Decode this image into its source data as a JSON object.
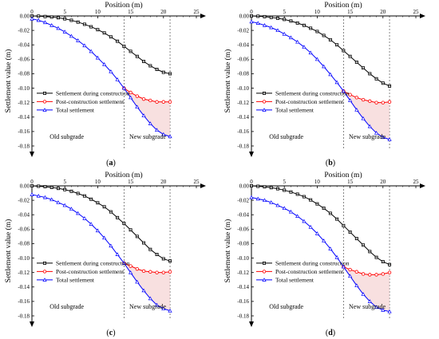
{
  "figure": {
    "panels": [
      "(a)",
      "(b)",
      "(c)",
      "(d)"
    ]
  },
  "colors": {
    "during": "#000000",
    "post": "#ff0000",
    "total": "#0000ff",
    "post_fill": "#f2c6c6",
    "divider": "#555555"
  },
  "chart_data": [
    {
      "type": "line",
      "panel_label": "(a)",
      "xlabel": "Position (m)",
      "ylabel": "Settlement value (m)",
      "xlim": [
        0,
        25
      ],
      "ylim": [
        -0.18,
        0.0
      ],
      "xticks": [
        "0",
        "5",
        "10",
        "15",
        "20",
        "25"
      ],
      "yticks": [
        "0.00",
        "-0.02",
        "-0.04",
        "-0.06",
        "-0.08",
        "-0.10",
        "-0.12",
        "-0.14",
        "-0.16",
        "-0.18"
      ],
      "divider_x": [
        14,
        21
      ],
      "region_labels": [
        "Old subgrade",
        "New subgrade"
      ],
      "legend_position": "left-middle",
      "series": [
        {
          "name": "Settlement during construction",
          "color": "#000000",
          "marker": "square",
          "x": [
            0,
            1,
            2,
            3,
            4,
            5,
            6,
            7,
            8,
            9,
            10,
            11,
            12,
            13,
            14,
            15,
            16,
            17,
            18,
            19,
            20,
            21
          ],
          "y": [
            0.0,
            -0.0003,
            -0.0008,
            -0.0015,
            -0.0025,
            -0.004,
            -0.006,
            -0.0085,
            -0.0115,
            -0.015,
            -0.019,
            -0.0235,
            -0.029,
            -0.035,
            -0.042,
            -0.049,
            -0.056,
            -0.063,
            -0.069,
            -0.074,
            -0.078,
            -0.08
          ]
        },
        {
          "name": "Post-construction settlement",
          "color": "#ff0000",
          "marker": "circle",
          "x": [
            14,
            15,
            16,
            17,
            18,
            19,
            20,
            21
          ],
          "y": [
            -0.1,
            -0.106,
            -0.111,
            -0.115,
            -0.117,
            -0.119,
            -0.119,
            -0.119
          ]
        },
        {
          "name": "Total settlement",
          "color": "#0000ff",
          "marker": "triangle",
          "x": [
            0,
            1,
            2,
            3,
            4,
            5,
            6,
            7,
            8,
            9,
            10,
            11,
            12,
            13,
            14,
            15,
            16,
            17,
            18,
            19,
            20,
            21
          ],
          "y": [
            -0.004,
            -0.006,
            -0.009,
            -0.013,
            -0.017,
            -0.022,
            -0.028,
            -0.034,
            -0.041,
            -0.049,
            -0.058,
            -0.067,
            -0.077,
            -0.088,
            -0.1,
            -0.113,
            -0.126,
            -0.138,
            -0.149,
            -0.158,
            -0.164,
            -0.167
          ]
        }
      ]
    },
    {
      "type": "line",
      "panel_label": "(b)",
      "xlabel": "Position (m)",
      "ylabel": "Settlement value (m)",
      "xlim": [
        0,
        25
      ],
      "ylim": [
        -0.18,
        0.0
      ],
      "xticks": [
        "0",
        "5",
        "10",
        "15",
        "20",
        "25"
      ],
      "yticks": [
        "0.00",
        "-0.02",
        "-0.04",
        "-0.06",
        "-0.08",
        "-0.10",
        "-0.12",
        "-0.14",
        "-0.16",
        "-0.18"
      ],
      "divider_x": [
        14,
        21
      ],
      "region_labels": [
        "Old subgrade",
        "New subgrade"
      ],
      "legend_position": "left-middle",
      "series": [
        {
          "name": "Settlement during construction",
          "color": "#000000",
          "marker": "square",
          "x": [
            0,
            1,
            2,
            3,
            4,
            5,
            6,
            7,
            8,
            9,
            10,
            11,
            12,
            13,
            14,
            15,
            16,
            17,
            18,
            19,
            20,
            21
          ],
          "y": [
            0.0,
            -0.0004,
            -0.001,
            -0.002,
            -0.0032,
            -0.0048,
            -0.007,
            -0.0098,
            -0.013,
            -0.017,
            -0.0215,
            -0.027,
            -0.033,
            -0.04,
            -0.048,
            -0.056,
            -0.064,
            -0.072,
            -0.08,
            -0.087,
            -0.093,
            -0.097
          ]
        },
        {
          "name": "Post-construction settlement",
          "color": "#ff0000",
          "marker": "circle",
          "x": [
            14,
            15,
            16,
            17,
            18,
            19,
            20,
            21
          ],
          "y": [
            -0.104,
            -0.109,
            -0.113,
            -0.116,
            -0.118,
            -0.12,
            -0.12,
            -0.119
          ]
        },
        {
          "name": "Total settlement",
          "color": "#0000ff",
          "marker": "triangle",
          "x": [
            0,
            1,
            2,
            3,
            4,
            5,
            6,
            7,
            8,
            9,
            10,
            11,
            12,
            13,
            14,
            15,
            16,
            17,
            18,
            19,
            20,
            21
          ],
          "y": [
            -0.008,
            -0.01,
            -0.013,
            -0.016,
            -0.02,
            -0.025,
            -0.03,
            -0.036,
            -0.043,
            -0.051,
            -0.06,
            -0.07,
            -0.081,
            -0.092,
            -0.104,
            -0.117,
            -0.13,
            -0.142,
            -0.153,
            -0.162,
            -0.168,
            -0.171
          ]
        }
      ]
    },
    {
      "type": "line",
      "panel_label": "(c)",
      "xlabel": "Position (m)",
      "ylabel": "Settlement value (m)",
      "xlim": [
        0,
        25
      ],
      "ylim": [
        -0.18,
        0.0
      ],
      "xticks": [
        "0",
        "5",
        "10",
        "15",
        "20",
        "25"
      ],
      "yticks": [
        "0.00",
        "-0.02",
        "-0.04",
        "-0.06",
        "-0.08",
        "-0.10",
        "-0.12",
        "-0.14",
        "-0.16",
        "-0.18"
      ],
      "divider_x": [
        14,
        21
      ],
      "region_labels": [
        "Old subgrade",
        "New subgrade"
      ],
      "legend_position": "left-middle",
      "series": [
        {
          "name": "Settlement during construction",
          "color": "#000000",
          "marker": "square",
          "x": [
            0,
            1,
            2,
            3,
            4,
            5,
            6,
            7,
            8,
            9,
            10,
            11,
            12,
            13,
            14,
            15,
            16,
            17,
            18,
            19,
            20,
            21
          ],
          "y": [
            0.0,
            -0.0005,
            -0.0012,
            -0.0022,
            -0.0035,
            -0.0052,
            -0.0075,
            -0.0105,
            -0.014,
            -0.0185,
            -0.0235,
            -0.029,
            -0.036,
            -0.044,
            -0.052,
            -0.061,
            -0.07,
            -0.079,
            -0.088,
            -0.095,
            -0.101,
            -0.104
          ]
        },
        {
          "name": "Post-construction settlement",
          "color": "#ff0000",
          "marker": "circle",
          "x": [
            14,
            15,
            16,
            17,
            18,
            19,
            20,
            21
          ],
          "y": [
            -0.107,
            -0.111,
            -0.115,
            -0.118,
            -0.119,
            -0.12,
            -0.12,
            -0.119
          ]
        },
        {
          "name": "Total settlement",
          "color": "#0000ff",
          "marker": "triangle",
          "x": [
            0,
            1,
            2,
            3,
            4,
            5,
            6,
            7,
            8,
            9,
            10,
            11,
            12,
            13,
            14,
            15,
            16,
            17,
            18,
            19,
            20,
            21
          ],
          "y": [
            -0.012,
            -0.014,
            -0.016,
            -0.019,
            -0.023,
            -0.027,
            -0.032,
            -0.038,
            -0.045,
            -0.053,
            -0.062,
            -0.072,
            -0.083,
            -0.095,
            -0.107,
            -0.12,
            -0.133,
            -0.145,
            -0.156,
            -0.165,
            -0.17,
            -0.173
          ]
        }
      ]
    },
    {
      "type": "line",
      "panel_label": "(d)",
      "xlabel": "Position (m)",
      "ylabel": "Settlement value (m)",
      "xlim": [
        0,
        25
      ],
      "ylim": [
        -0.18,
        0.0
      ],
      "xticks": [
        "0",
        "5",
        "10",
        "15",
        "20",
        "25"
      ],
      "yticks": [
        "0.00",
        "-0.02",
        "-0.04",
        "-0.06",
        "-0.08",
        "-0.10",
        "-0.12",
        "-0.14",
        "-0.16",
        "-0.18"
      ],
      "divider_x": [
        14,
        21
      ],
      "region_labels": [
        "Old subgrade",
        "New subgrade"
      ],
      "legend_position": "left-middle",
      "series": [
        {
          "name": "Settlement during construction",
          "color": "#000000",
          "marker": "square",
          "x": [
            0,
            1,
            2,
            3,
            4,
            5,
            6,
            7,
            8,
            9,
            10,
            11,
            12,
            13,
            14,
            15,
            16,
            17,
            18,
            19,
            20,
            21
          ],
          "y": [
            0.0,
            -0.0006,
            -0.0014,
            -0.0025,
            -0.004,
            -0.006,
            -0.0085,
            -0.0115,
            -0.015,
            -0.0195,
            -0.025,
            -0.031,
            -0.038,
            -0.046,
            -0.055,
            -0.064,
            -0.073,
            -0.082,
            -0.091,
            -0.099,
            -0.105,
            -0.109
          ]
        },
        {
          "name": "Post-construction settlement",
          "color": "#ff0000",
          "marker": "circle",
          "x": [
            14,
            15,
            16,
            17,
            18,
            19,
            20,
            21
          ],
          "y": [
            -0.112,
            -0.116,
            -0.119,
            -0.122,
            -0.123,
            -0.123,
            -0.122,
            -0.12
          ]
        },
        {
          "name": "Total settlement",
          "color": "#0000ff",
          "marker": "triangle",
          "x": [
            0,
            1,
            2,
            3,
            4,
            5,
            6,
            7,
            8,
            9,
            10,
            11,
            12,
            13,
            14,
            15,
            16,
            17,
            18,
            19,
            20,
            21
          ],
          "y": [
            -0.016,
            -0.018,
            -0.02,
            -0.023,
            -0.027,
            -0.031,
            -0.036,
            -0.042,
            -0.049,
            -0.057,
            -0.066,
            -0.076,
            -0.087,
            -0.099,
            -0.112,
            -0.125,
            -0.138,
            -0.15,
            -0.16,
            -0.168,
            -0.172,
            -0.174
          ]
        }
      ]
    }
  ]
}
